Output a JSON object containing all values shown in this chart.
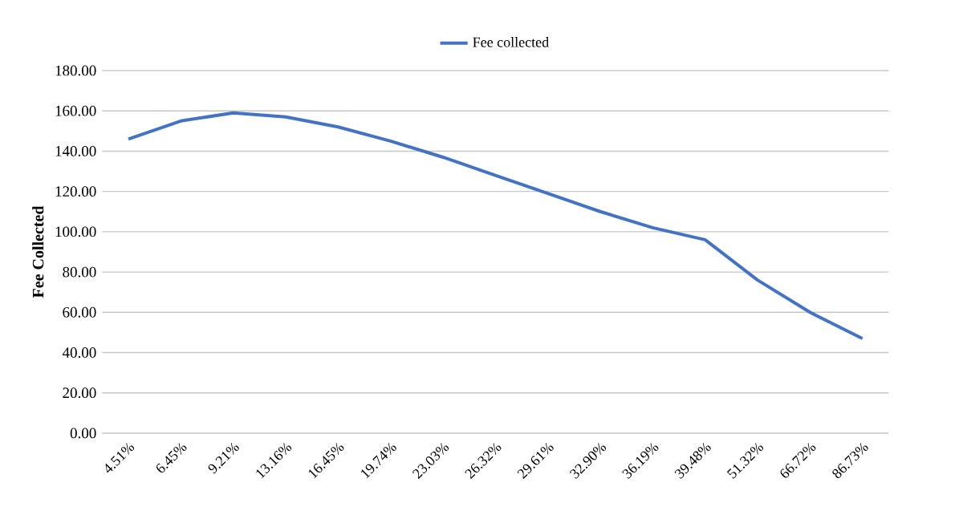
{
  "chart_data": {
    "type": "line",
    "ylabel": "Fee Collected",
    "categories": [
      "4.51%",
      "6.45%",
      "9.21%",
      "13.16%",
      "16.45%",
      "19.74%",
      "23.03%",
      "26.32%",
      "29.61%",
      "32.90%",
      "36.19%",
      "39.48%",
      "51.32%",
      "66.72%",
      "86.73%"
    ],
    "series": [
      {
        "name": "Fee collected",
        "color": "#4472c4",
        "values": [
          146,
          155,
          159,
          157,
          152,
          145,
          137,
          128,
          119,
          110,
          102,
          96,
          76,
          60,
          47
        ]
      }
    ],
    "ylim": [
      0,
      180
    ],
    "yticks": [
      {
        "value": 0,
        "label": "0.00"
      },
      {
        "value": 20,
        "label": "20.00"
      },
      {
        "value": 40,
        "label": "40.00"
      },
      {
        "value": 60,
        "label": "60.00"
      },
      {
        "value": 80,
        "label": "80.00"
      },
      {
        "value": 100,
        "label": "100.00"
      },
      {
        "value": 120,
        "label": "120.00"
      },
      {
        "value": 140,
        "label": "140.00"
      },
      {
        "value": 160,
        "label": "160.00"
      },
      {
        "value": 180,
        "label": "180.00"
      }
    ],
    "grid": "y",
    "legend": "top"
  }
}
